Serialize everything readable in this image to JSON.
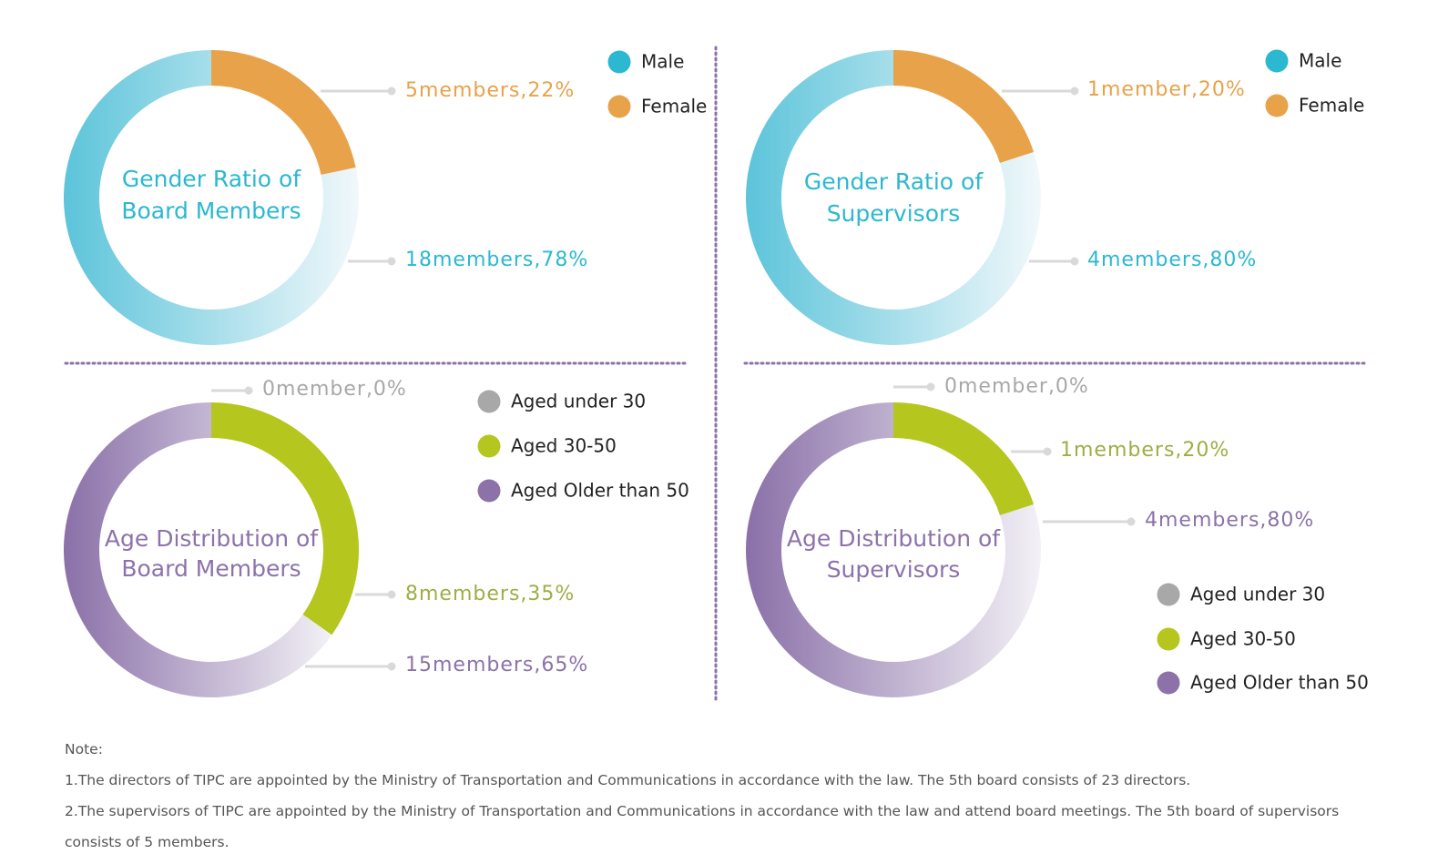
{
  "chart_data": [
    {
      "type": "pie",
      "title": "Gender Ratio of Board Members",
      "title_lines": [
        "Gender Ratio of",
        "Board Members"
      ],
      "slices": [
        {
          "name": "Female",
          "value": 5,
          "percent": 22,
          "label": "5members,22%",
          "color": "#e8a24a"
        },
        {
          "name": "Male",
          "value": 18,
          "percent": 78,
          "label": "18members,78%",
          "color": "#2bb8d0"
        }
      ],
      "legend": [
        {
          "name": "Male",
          "color": "#2bb8d0"
        },
        {
          "name": "Female",
          "color": "#e8a24a"
        }
      ],
      "legend_position": "top-right"
    },
    {
      "type": "pie",
      "title": "Gender Ratio of Supervisors",
      "title_lines": [
        "Gender Ratio of",
        "Supervisors"
      ],
      "slices": [
        {
          "name": "Female",
          "value": 1,
          "percent": 20,
          "label": "1member,20%",
          "color": "#e8a24a"
        },
        {
          "name": "Male",
          "value": 4,
          "percent": 80,
          "label": "4members,80%",
          "color": "#2bb8d0"
        }
      ],
      "legend": [
        {
          "name": "Male",
          "color": "#2bb8d0"
        },
        {
          "name": "Female",
          "color": "#e8a24a"
        }
      ],
      "legend_position": "top-right"
    },
    {
      "type": "pie",
      "title": "Age Distribution of Board Members",
      "title_lines": [
        "Age Distribution of",
        "Board Members"
      ],
      "slices": [
        {
          "name": "Aged under 30",
          "value": 0,
          "percent": 0,
          "label": "0member,0%",
          "color": "#a8a8a8"
        },
        {
          "name": "Aged 30-50",
          "value": 8,
          "percent": 35,
          "label": "8members,35%",
          "color": "#b5c61e"
        },
        {
          "name": "Aged Older than 50",
          "value": 15,
          "percent": 65,
          "label": "15members,65%",
          "color": "#8c72a9"
        }
      ],
      "legend": [
        {
          "name": "Aged under 30",
          "color": "#a8a8a8"
        },
        {
          "name": "Aged 30-50",
          "color": "#b5c61e"
        },
        {
          "name": "Aged Older than 50",
          "color": "#8c72a9"
        }
      ],
      "legend_position": "top-right"
    },
    {
      "type": "pie",
      "title": "Age Distribution of Supervisors",
      "title_lines": [
        "Age Distribution of",
        "Supervisors"
      ],
      "slices": [
        {
          "name": "Aged under 30",
          "value": 0,
          "percent": 0,
          "label": "0member,0%",
          "color": "#a8a8a8"
        },
        {
          "name": "Aged 30-50",
          "value": 1,
          "percent": 20,
          "label": "1members,20%",
          "color": "#b5c61e"
        },
        {
          "name": "Aged Older than 50",
          "value": 4,
          "percent": 80,
          "label": "4members,80%",
          "color": "#8c72a9"
        }
      ],
      "legend": [
        {
          "name": "Aged under 30",
          "color": "#a8a8a8"
        },
        {
          "name": "Aged 30-50",
          "color": "#b5c61e"
        },
        {
          "name": "Aged Older than 50",
          "color": "#8c72a9"
        }
      ],
      "legend_position": "bottom-right"
    }
  ],
  "colors": {
    "divider": "#8c72a9",
    "leader_line": "#d9d9d9",
    "male_text": "#2bb8d0",
    "female_text": "#e8a24a",
    "age_title": "#8c72a9",
    "aged_30_50_text": "#a0ad45",
    "zero_label_text": "#a8a8a8"
  },
  "notes": {
    "heading": "Note:",
    "line1": "1.The directors of TIPC are appointed by the Ministry of Transportation and Communications in accordance with the law. The 5th board consists of 23 directors.",
    "line2": "2.The supervisors of TIPC are appointed by the Ministry of Transportation and Communications in accordance with the law and attend board meetings. The 5th board of supervisors consists of 5 members."
  }
}
